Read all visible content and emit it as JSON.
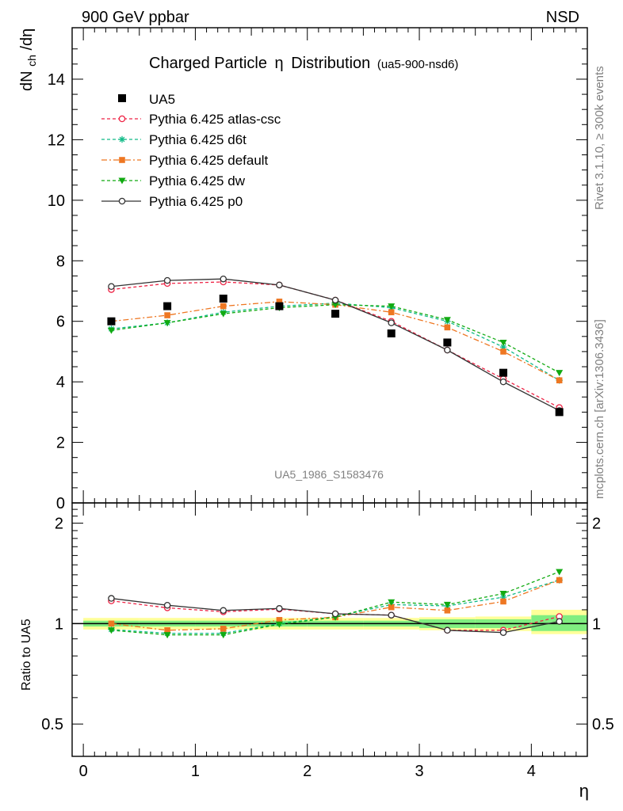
{
  "header": {
    "left_label": "900 GeV ppbar",
    "right_label": "NSD",
    "side_label_top": "Rivet 3.1.10, ≥ 300k events",
    "side_label_bottom": "mcplots.cern.ch [arXiv:1306.3436]"
  },
  "chart_data": [
    {
      "type": "line",
      "title": "Charged Particle",
      "title_symbol": "η",
      "title_tail": "Distribution",
      "subtitle": "(ua5-900-nsd6)",
      "watermark": "UA5_1986_S1583476",
      "ylabel": {
        "main": "dN",
        "sub": "ch",
        "tail": "/dη"
      },
      "xlabel": "η",
      "xlim": [
        -0.1,
        4.5
      ],
      "ylim": [
        0,
        15.7
      ],
      "xticks": [
        "0",
        "1",
        "2",
        "3",
        "4"
      ],
      "yticks": [
        "0",
        "2",
        "4",
        "6",
        "8",
        "10",
        "12",
        "14"
      ],
      "x": [
        0.25,
        0.75,
        1.25,
        1.75,
        2.25,
        2.75,
        3.25,
        3.75,
        4.25
      ],
      "data": {
        "name": "UA5",
        "color": "#000000",
        "values": [
          6.0,
          6.5,
          6.75,
          6.5,
          6.25,
          5.6,
          5.3,
          4.3,
          3.0
        ]
      },
      "series": [
        {
          "name": "Pythia 6.425 atlas-csc",
          "color": "#ee2244",
          "dash": "4,3",
          "marker": "open-circle",
          "values": [
            7.05,
            7.25,
            7.3,
            7.2,
            6.7,
            6.0,
            5.05,
            4.1,
            3.15
          ]
        },
        {
          "name": "Pythia 6.425 d6t",
          "color": "#11bb88",
          "dash": "4,3",
          "marker": "star",
          "values": [
            5.75,
            5.95,
            6.3,
            6.5,
            6.6,
            6.45,
            6.0,
            5.15,
            4.05
          ]
        },
        {
          "name": "Pythia 6.425 default",
          "color": "#ee7722",
          "dash": "7,3,2,3",
          "marker": "filled-square",
          "values": [
            6.0,
            6.2,
            6.5,
            6.65,
            6.55,
            6.3,
            5.8,
            5.0,
            4.05
          ]
        },
        {
          "name": "Pythia 6.425 dw",
          "color": "#11aa11",
          "dash": "4,3",
          "marker": "filled-triangle-down",
          "values": [
            5.7,
            5.95,
            6.25,
            6.45,
            6.55,
            6.5,
            6.05,
            5.3,
            4.3
          ]
        },
        {
          "name": "Pythia 6.425 p0",
          "color": "#333333",
          "dash": "",
          "marker": "open-circle",
          "values": [
            7.15,
            7.35,
            7.4,
            7.2,
            6.7,
            5.95,
            5.05,
            4.0,
            3.05
          ]
        }
      ]
    },
    {
      "type": "line",
      "ylabel": "Ratio to UA5",
      "yscale": "log",
      "ylim": [
        0.4,
        2.3
      ],
      "yticks_major": [
        {
          "value": 0.5,
          "label": "0.5"
        },
        {
          "value": 1,
          "label": "1"
        },
        {
          "value": 2,
          "label": "2"
        }
      ],
      "x": [
        0.25,
        0.75,
        1.25,
        1.75,
        2.25,
        2.75,
        3.25,
        3.75,
        4.25
      ],
      "band_edges": [
        0,
        0.5,
        1,
        1.5,
        2,
        2.5,
        3,
        3.5,
        4,
        4.5
      ],
      "band_inner": [
        [
          0.98,
          1.02
        ],
        [
          0.98,
          1.02
        ],
        [
          0.98,
          1.02
        ],
        [
          0.98,
          1.02
        ],
        [
          0.98,
          1.02
        ],
        [
          0.98,
          1.02
        ],
        [
          0.97,
          1.03
        ],
        [
          0.97,
          1.03
        ],
        [
          0.95,
          1.06
        ]
      ],
      "band_outer": [
        [
          0.96,
          1.04
        ],
        [
          0.96,
          1.04
        ],
        [
          0.96,
          1.04
        ],
        [
          0.96,
          1.04
        ],
        [
          0.96,
          1.04
        ],
        [
          0.96,
          1.04
        ],
        [
          0.955,
          1.045
        ],
        [
          0.95,
          1.05
        ],
        [
          0.93,
          1.1
        ]
      ],
      "inner_color": "#80ee80",
      "outer_color": "#ffff99",
      "series": [
        {
          "name": "Pythia 6.425 atlas-csc",
          "values": [
            1.17,
            1.115,
            1.085,
            1.105,
            1.07,
            1.06,
            0.955,
            0.955,
            1.05
          ]
        },
        {
          "name": "Pythia 6.425 d6t",
          "values": [
            0.96,
            0.935,
            0.935,
            1.0,
            1.05,
            1.14,
            1.13,
            1.2,
            1.35
          ]
        },
        {
          "name": "Pythia 6.425 default",
          "values": [
            1.0,
            0.955,
            0.965,
            1.025,
            1.045,
            1.12,
            1.095,
            1.165,
            1.35
          ]
        },
        {
          "name": "Pythia 6.425 dw",
          "values": [
            0.955,
            0.925,
            0.925,
            0.995,
            1.045,
            1.16,
            1.14,
            1.23,
            1.43
          ]
        },
        {
          "name": "Pythia 6.425 p0",
          "values": [
            1.19,
            1.135,
            1.095,
            1.11,
            1.07,
            1.06,
            0.955,
            0.94,
            1.015
          ]
        }
      ]
    }
  ]
}
